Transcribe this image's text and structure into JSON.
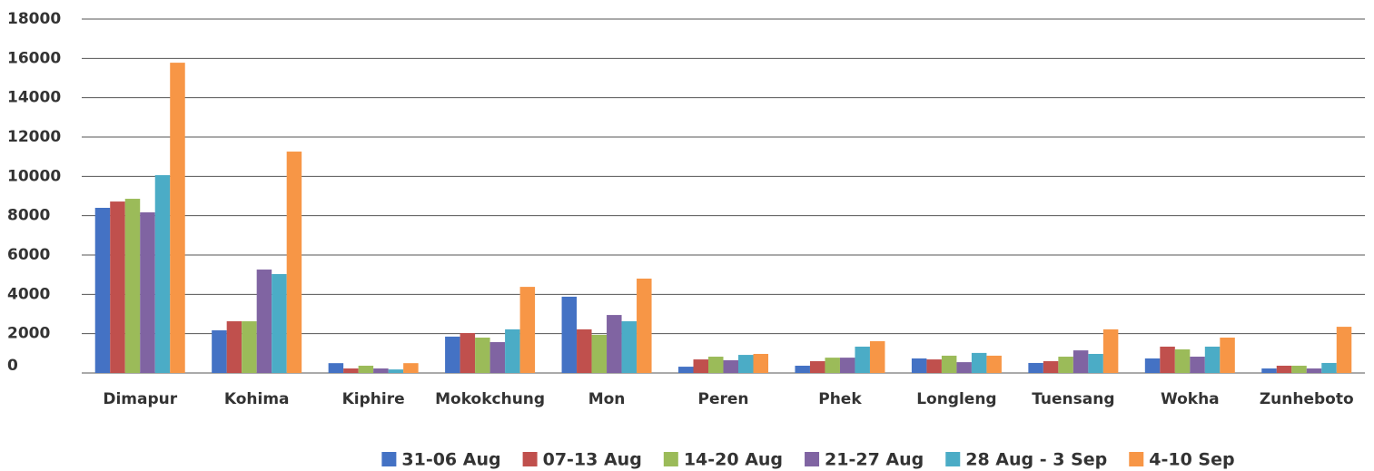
{
  "chart_data": {
    "type": "bar",
    "categories": [
      "Dimapur",
      "Kohima",
      "Kiphire",
      "Mokokchung",
      "Mon",
      "Peren",
      "Phek",
      "Longleng",
      "Tuensang",
      "Wokha",
      "Zunheboto"
    ],
    "series": [
      {
        "name": "31-06 Aug",
        "color": "#4472c4",
        "values": [
          8400,
          2170,
          500,
          1850,
          3880,
          320,
          370,
          740,
          510,
          740,
          230
        ]
      },
      {
        "name": "07-13 Aug",
        "color": "#c0504d",
        "values": [
          8720,
          2630,
          230,
          2030,
          2220,
          690,
          600,
          690,
          600,
          1340,
          370
        ]
      },
      {
        "name": "14-20 Aug",
        "color": "#9bbb59",
        "values": [
          8860,
          2630,
          370,
          1800,
          1940,
          830,
          780,
          880,
          830,
          1200,
          370
        ]
      },
      {
        "name": "21-27 Aug",
        "color": "#8064a2",
        "values": [
          8170,
          5260,
          230,
          1570,
          2950,
          650,
          780,
          550,
          1150,
          830,
          230
        ]
      },
      {
        "name": "28 Aug - 3 Sep",
        "color": "#4bacc6",
        "values": [
          10060,
          5030,
          180,
          2220,
          2630,
          920,
          1340,
          1020,
          970,
          1340,
          510
        ]
      },
      {
        "name": "4-10 Sep",
        "color": "#f79646",
        "values": [
          15780,
          11260,
          500,
          4380,
          4800,
          970,
          1620,
          880,
          2220,
          1800,
          2350
        ]
      }
    ],
    "ylim": [
      0,
      18000
    ],
    "yticks": [
      0,
      2000,
      4000,
      6000,
      8000,
      10000,
      12000,
      14000,
      16000,
      18000
    ],
    "grid": true,
    "legend": "bottom"
  }
}
